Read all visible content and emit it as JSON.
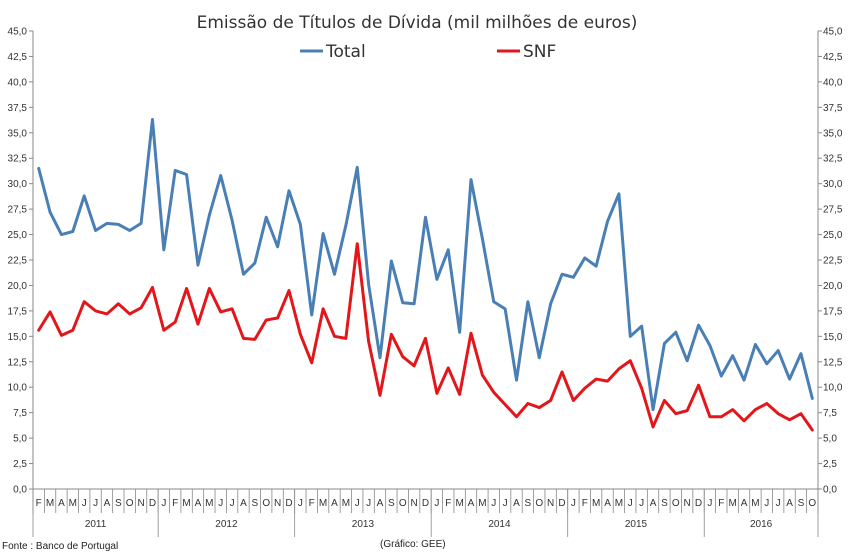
{
  "chart_data": {
    "type": "line",
    "title": "Emissão de Títulos de Dívida (mil milhões de euros)",
    "ylim": [
      0,
      45
    ],
    "ytick_step": 2.5,
    "ytick_labels": [
      "0,0",
      "2,5",
      "5,0",
      "7,5",
      "10,0",
      "12,5",
      "15,0",
      "17,5",
      "20,0",
      "22,5",
      "25,0",
      "27,5",
      "30,0",
      "32,5",
      "35,0",
      "37,5",
      "40,0",
      "42,5",
      "45,0"
    ],
    "month_labels": [
      "F",
      "M",
      "A",
      "M",
      "J",
      "J",
      "A",
      "S",
      "O",
      "N",
      "D",
      "J",
      "F",
      "M",
      "A",
      "M",
      "J",
      "J",
      "A",
      "S",
      "O",
      "N",
      "D",
      "J",
      "F",
      "M",
      "A",
      "M",
      "J",
      "J",
      "A",
      "S",
      "O",
      "N",
      "D",
      "J",
      "F",
      "M",
      "A",
      "M",
      "J",
      "J",
      "A",
      "S",
      "O",
      "N",
      "D",
      "J",
      "F",
      "M",
      "A",
      "M",
      "J",
      "J",
      "A",
      "S",
      "O",
      "N",
      "D",
      "J",
      "F",
      "M",
      "A",
      "M",
      "J",
      "J",
      "A",
      "S",
      "O"
    ],
    "years": [
      {
        "label": "2011",
        "start": 0,
        "end": 10
      },
      {
        "label": "2012",
        "start": 11,
        "end": 22
      },
      {
        "label": "2013",
        "start": 23,
        "end": 34
      },
      {
        "label": "2014",
        "start": 35,
        "end": 46
      },
      {
        "label": "2015",
        "start": 47,
        "end": 58
      },
      {
        "label": "2016",
        "start": 59,
        "end": 68
      }
    ],
    "series": [
      {
        "name": "Total",
        "color": "#4a7fb5",
        "values": [
          31.5,
          27.2,
          25.0,
          25.3,
          28.8,
          25.4,
          26.1,
          26.0,
          25.4,
          26.1,
          36.3,
          23.5,
          31.3,
          30.9,
          22.0,
          26.9,
          30.8,
          26.4,
          21.1,
          22.2,
          26.7,
          23.8,
          29.3,
          26.0,
          17.1,
          25.1,
          21.1,
          25.9,
          31.6,
          20.1,
          12.9,
          22.4,
          18.3,
          18.2,
          26.7,
          20.6,
          23.5,
          15.4,
          30.4,
          24.6,
          18.4,
          17.7,
          10.7,
          18.4,
          12.9,
          18.2,
          21.1,
          20.8,
          22.7,
          21.9,
          26.3,
          29.0,
          15.0,
          16.0,
          7.8,
          14.3,
          15.4,
          12.6,
          16.1,
          14.1,
          11.1,
          13.1,
          10.7,
          14.2,
          12.3,
          13.6,
          10.8,
          13.3,
          8.9
        ]
      },
      {
        "name": "SNF",
        "color": "#e3171b",
        "values": [
          15.6,
          17.4,
          15.1,
          15.6,
          18.4,
          17.5,
          17.2,
          18.2,
          17.2,
          17.8,
          19.8,
          15.6,
          16.4,
          19.7,
          16.2,
          19.7,
          17.4,
          17.7,
          14.8,
          14.7,
          16.6,
          16.8,
          19.5,
          15.2,
          12.4,
          17.7,
          15.0,
          14.8,
          24.1,
          14.5,
          9.2,
          15.2,
          13.0,
          12.1,
          14.8,
          9.4,
          11.9,
          9.3,
          15.3,
          11.2,
          9.5,
          8.3,
          7.1,
          8.4,
          8.0,
          8.7,
          11.5,
          8.7,
          9.9,
          10.8,
          10.6,
          11.8,
          12.6,
          9.9,
          6.1,
          8.7,
          7.4,
          7.7,
          10.2,
          7.1,
          7.1,
          7.8,
          6.7,
          7.8,
          8.4,
          7.4,
          6.8,
          7.4,
          5.8
        ]
      }
    ]
  },
  "footer": {
    "source": "Fonte : Banco de Portugal",
    "credit": "(Gráfico: GEE)"
  }
}
